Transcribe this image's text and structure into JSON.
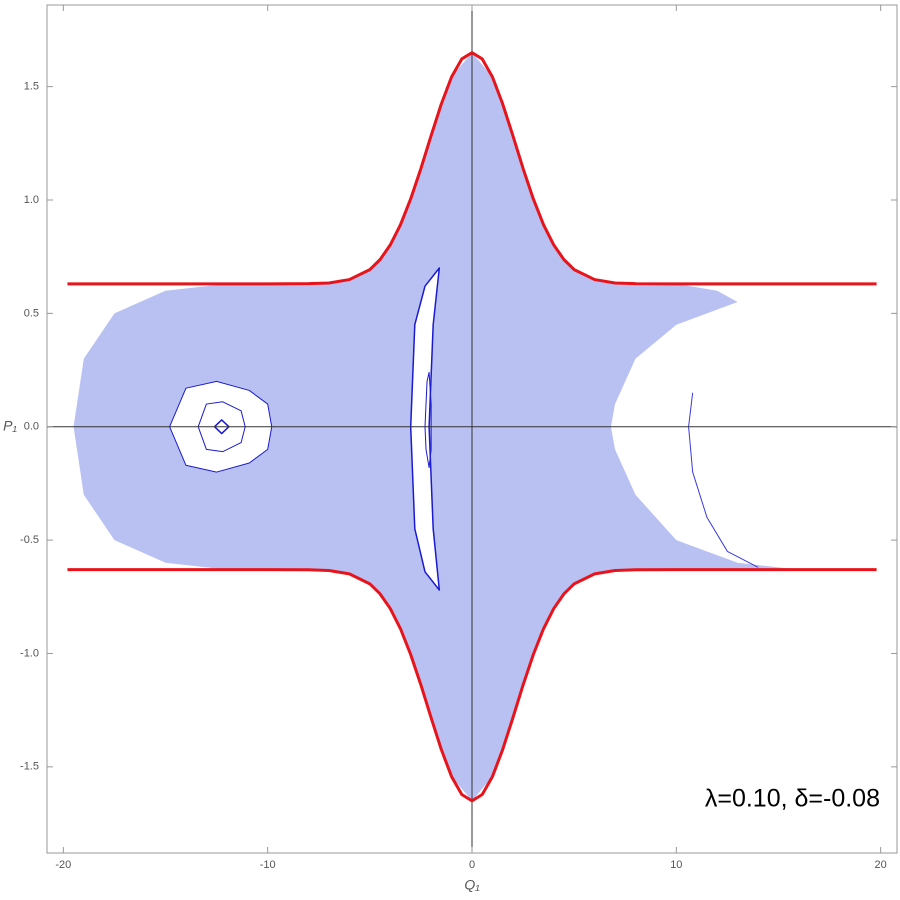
{
  "chart_data": {
    "type": "line",
    "x_label": "Q₁",
    "y_label": "P₁",
    "annotation": "λ=0.10, δ=-0.08",
    "xlim": [
      -20.8,
      20.8
    ],
    "ylim": [
      -1.88,
      1.86
    ],
    "xticks": [
      -20,
      -10,
      0,
      10,
      20
    ],
    "yticks": [
      -1.5,
      {
        "value": -1,
        "label": "-1.0"
      },
      -0.5,
      {
        "value": 0,
        "label": "0.0"
      },
      0.5,
      {
        "value": 1,
        "label": "1.0"
      },
      1.5
    ],
    "axes_at_zero": true,
    "series": [
      {
        "color": "#b9c1f3",
        "fill": "#b9c1f3",
        "width": 0,
        "x": [
          -19.5,
          -19,
          -17.5,
          -15,
          -12,
          -8,
          -6,
          -5,
          -4,
          -3,
          -2,
          -1,
          0,
          1,
          2,
          3,
          4,
          5,
          6,
          8,
          10,
          12,
          13,
          10,
          8,
          7,
          6.8,
          7,
          8,
          10,
          13,
          16,
          10,
          8,
          6,
          5,
          4,
          3,
          2,
          1,
          0,
          -1,
          -2,
          -3,
          -4,
          -5,
          -6,
          -8,
          -12,
          -15,
          -17.5,
          -19
        ],
        "values": [
          0,
          0.3,
          0.5,
          0.6,
          0.63,
          0.631,
          0.649,
          0.693,
          0.802,
          1.005,
          1.284,
          1.543,
          1.65,
          1.543,
          1.284,
          1.005,
          0.802,
          0.693,
          0.649,
          0.631,
          0.63,
          0.6,
          0.55,
          0.45,
          0.3,
          0.1,
          0,
          -0.1,
          -0.3,
          -0.5,
          -0.6,
          -0.63,
          -0.63,
          -0.631,
          -0.649,
          -0.693,
          -0.802,
          -1.005,
          -1.284,
          -1.543,
          -1.65,
          -1.543,
          -1.284,
          -1.005,
          -0.802,
          -0.693,
          -0.649,
          -0.631,
          -0.63,
          -0.6,
          -0.5,
          -0.3
        ]
      },
      {
        "color": "#1a1ad0",
        "fill": "#ffffff",
        "width": 1,
        "x": [
          -14.8,
          -14,
          -12.5,
          -10.9,
          -10,
          -9.8,
          -10,
          -10.9,
          -12.5,
          -14,
          -14.8
        ],
        "values": [
          0,
          0.17,
          0.2,
          0.16,
          0.1,
          0,
          -0.1,
          -0.16,
          -0.2,
          -0.17,
          0
        ]
      },
      {
        "color": "#1a1ad0",
        "fill": null,
        "width": 1,
        "x": [
          -13.4,
          -13,
          -12.2,
          -11.3,
          -11.1,
          -11.3,
          -12.2,
          -13,
          -13.4
        ],
        "values": [
          0,
          0.1,
          0.11,
          0.07,
          0,
          -0.07,
          -0.11,
          -0.1,
          0
        ]
      },
      {
        "color": "#1a1ad0",
        "fill": null,
        "width": 1.5,
        "x": [
          -12.6,
          -12.25,
          -11.9,
          -12.25,
          -12.6
        ],
        "values": [
          0,
          0.03,
          0,
          -0.03,
          0
        ]
      },
      {
        "color": "#1a1ad0",
        "fill": "#ffffff",
        "width": 1.5,
        "x": [
          -3,
          -2.8,
          -2.3,
          -1.6,
          -1.9,
          -2.1,
          -1.9,
          -1.6,
          -2.3,
          -2.8,
          -3
        ],
        "values": [
          0,
          0.45,
          0.62,
          0.7,
          0.45,
          0,
          -0.45,
          -0.72,
          -0.64,
          -0.45,
          0
        ]
      },
      {
        "color": "#1a1ad0",
        "fill": null,
        "width": 1,
        "x": [
          -2.3,
          -2.2,
          -2.1,
          -2,
          -2,
          -2.1,
          -2.25,
          -2.3
        ],
        "values": [
          0,
          0.2,
          0.24,
          0.1,
          -0.1,
          -0.18,
          -0.1,
          0
        ]
      },
      {
        "color": "#3a3ae0",
        "fill": null,
        "width": 1,
        "x": [
          10.8,
          10.6,
          10.8,
          11.5,
          12.5,
          14
        ],
        "values": [
          0.15,
          0,
          -0.2,
          -0.4,
          -0.55,
          -0.62
        ]
      },
      {
        "color": "#e8141c",
        "fill": null,
        "width": 3,
        "x": [
          -19.8,
          -10,
          -8,
          -7,
          -6,
          -5,
          -4.5,
          -4,
          -3.5,
          -3,
          -2.5,
          -2,
          -1.5,
          -1,
          -0.5,
          0,
          0.5,
          1,
          1.5,
          2,
          2.5,
          3,
          3.5,
          4,
          4.5,
          5,
          6,
          7,
          8,
          10,
          19.8
        ],
        "values": [
          0.63,
          0.63,
          0.631,
          0.634,
          0.649,
          0.693,
          0.737,
          0.802,
          0.891,
          1.005,
          1.139,
          1.284,
          1.424,
          1.543,
          1.622,
          1.65,
          1.622,
          1.543,
          1.424,
          1.284,
          1.139,
          1.005,
          0.891,
          0.802,
          0.737,
          0.693,
          0.649,
          0.634,
          0.631,
          0.63,
          0.63
        ]
      },
      {
        "color": "#e8141c",
        "fill": null,
        "width": 3,
        "x": [
          -19.8,
          -10,
          -8,
          -7,
          -6,
          -5,
          -4.5,
          -4,
          -3.5,
          -3,
          -2.5,
          -2,
          -1.5,
          -1,
          -0.5,
          0,
          0.5,
          1,
          1.5,
          2,
          2.5,
          3,
          3.5,
          4,
          4.5,
          5,
          6,
          7,
          8,
          10,
          19.8
        ],
        "values": [
          -0.63,
          -0.63,
          -0.631,
          -0.634,
          -0.649,
          -0.693,
          -0.737,
          -0.802,
          -0.891,
          -1.005,
          -1.139,
          -1.284,
          -1.424,
          -1.543,
          -1.622,
          -1.65,
          -1.622,
          -1.543,
          -1.424,
          -1.284,
          -1.139,
          -1.005,
          -0.891,
          -0.802,
          -0.737,
          -0.693,
          -0.649,
          -0.634,
          -0.631,
          -0.63,
          -0.63
        ]
      }
    ]
  }
}
